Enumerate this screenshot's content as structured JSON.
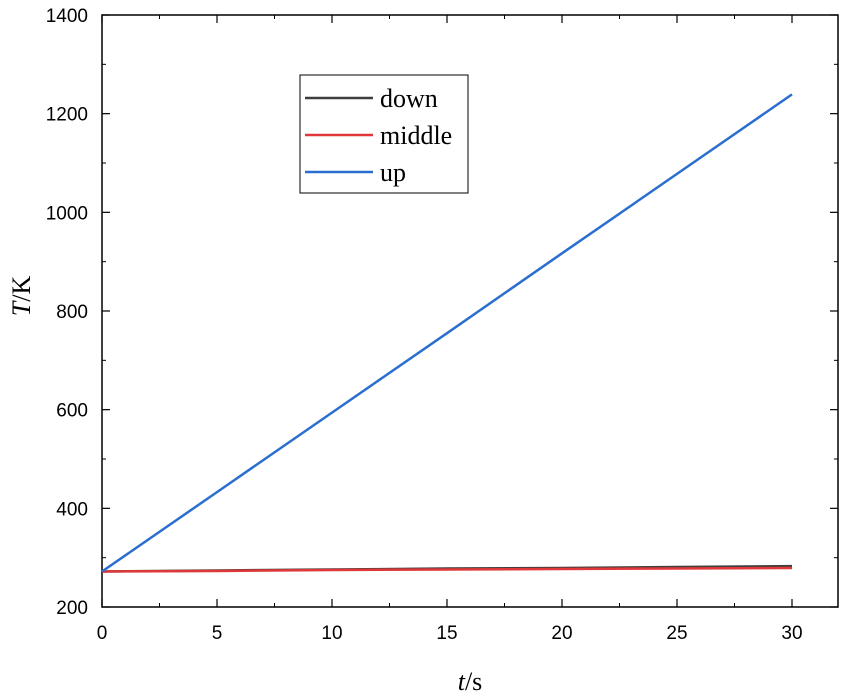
{
  "chart_data": {
    "type": "line",
    "xlabel_italic": "t",
    "xlabel_unit": "/s",
    "ylabel_italic": "T",
    "ylabel_unit": "/K",
    "xlim": [
      0,
      32
    ],
    "ylim": [
      200,
      1400
    ],
    "x_ticks": [
      0,
      5,
      10,
      15,
      20,
      25,
      30
    ],
    "y_ticks": [
      200,
      400,
      600,
      800,
      1000,
      1200,
      1400
    ],
    "grid": false,
    "legend_position": "top-center",
    "series": [
      {
        "name": "down",
        "color": "#3f3f3f",
        "x": [
          0,
          5,
          10,
          15,
          20,
          25,
          30
        ],
        "y": [
          272,
          274,
          276,
          278,
          279,
          281,
          283
        ]
      },
      {
        "name": "middle",
        "color": "#e0383a",
        "x": [
          0,
          5,
          10,
          15,
          20,
          25,
          30
        ],
        "y": [
          272,
          273,
          275,
          276,
          277,
          278,
          279
        ]
      },
      {
        "name": "up",
        "color": "#2a6fcf",
        "x": [
          0,
          5,
          10,
          15,
          20,
          25,
          30
        ],
        "y": [
          272,
          433,
          594,
          755,
          917,
          1078,
          1239
        ]
      }
    ]
  }
}
